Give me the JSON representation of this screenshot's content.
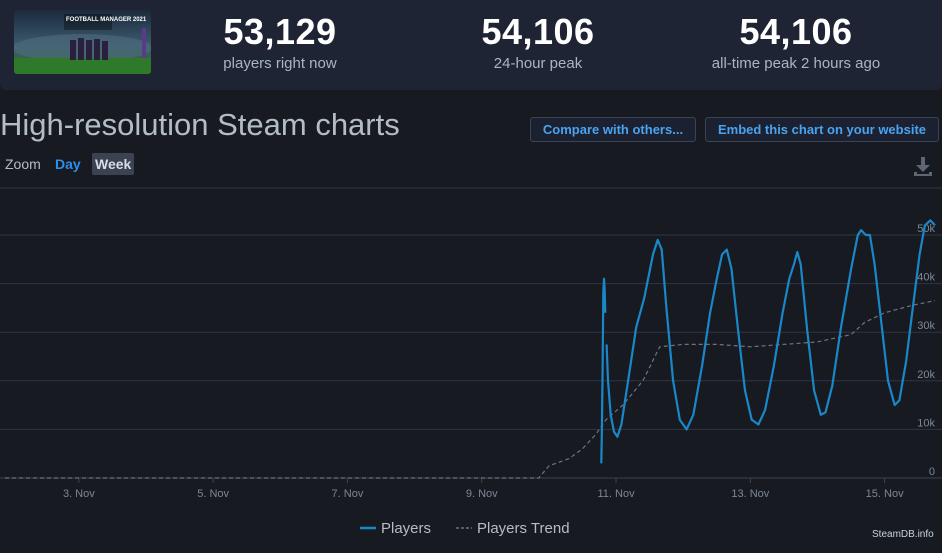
{
  "header": {
    "stats": [
      {
        "value": "53,129",
        "label": "players right now"
      },
      {
        "value": "54,106",
        "label": "24-hour peak"
      },
      {
        "value": "54,106",
        "label": "all-time peak 2 hours ago"
      }
    ],
    "game_image_text": "FOOTBALL MANAGER 2021"
  },
  "title": "High-resolution Steam charts",
  "buttons": {
    "compare": "Compare with others...",
    "embed": "Embed this chart on your website"
  },
  "zoom": {
    "label": "Zoom",
    "options": [
      "Day",
      "Week"
    ],
    "selected": "Week"
  },
  "watermark": "SteamDB.info",
  "colors": {
    "players": "#1a87c8",
    "trend": "#6d7380",
    "accent": "#4aa3f0",
    "background": "#171a21"
  },
  "chart_data": {
    "type": "line",
    "x_unit": "days (November)",
    "xlim": [
      1.9,
      15.75
    ],
    "ylim": [
      0,
      60000
    ],
    "x_ticks": [
      {
        "x": 3,
        "label": "3. Nov"
      },
      {
        "x": 5,
        "label": "5. Nov"
      },
      {
        "x": 7,
        "label": "7. Nov"
      },
      {
        "x": 9,
        "label": "9. Nov"
      },
      {
        "x": 11,
        "label": "11. Nov"
      },
      {
        "x": 13,
        "label": "13. Nov"
      },
      {
        "x": 15,
        "label": "15. Nov"
      }
    ],
    "y_ticks": [
      {
        "y": 0,
        "label": "0"
      },
      {
        "y": 10000,
        "label": "10k"
      },
      {
        "y": 20000,
        "label": "20k"
      },
      {
        "y": 30000,
        "label": "30k"
      },
      {
        "y": 40000,
        "label": "40k"
      },
      {
        "y": 50000,
        "label": "50k"
      }
    ],
    "legend": {
      "position": "bottom-center"
    },
    "series": [
      {
        "name": "Players",
        "style": "solid",
        "segments": [
          [
            [
              10.78,
              3000
            ],
            [
              10.79,
              10000
            ],
            [
              10.8,
              22000
            ],
            [
              10.81,
              38000
            ],
            [
              10.82,
              41000
            ],
            [
              10.83,
              39000
            ],
            [
              10.84,
              34000
            ]
          ],
          [
            [
              10.86,
              27500
            ],
            [
              10.88,
              20000
            ],
            [
              10.92,
              13000
            ],
            [
              10.97,
              9500
            ],
            [
              11.02,
              8500
            ],
            [
              11.08,
              11000
            ],
            [
              11.18,
              20000
            ],
            [
              11.3,
              31000
            ],
            [
              11.42,
              37000
            ],
            [
              11.55,
              46000
            ],
            [
              11.62,
              49000
            ],
            [
              11.68,
              47000
            ],
            [
              11.75,
              35000
            ],
            [
              11.85,
              20000
            ],
            [
              11.95,
              12000
            ],
            [
              12.05,
              10000
            ],
            [
              12.15,
              13000
            ],
            [
              12.28,
              23000
            ],
            [
              12.4,
              34000
            ],
            [
              12.5,
              41000
            ],
            [
              12.58,
              46000
            ],
            [
              12.65,
              47000
            ],
            [
              12.72,
              43000
            ],
            [
              12.82,
              30000
            ],
            [
              12.92,
              18000
            ],
            [
              13.02,
              12000
            ],
            [
              13.12,
              11000
            ],
            [
              13.22,
              14000
            ],
            [
              13.35,
              23000
            ],
            [
              13.48,
              34000
            ],
            [
              13.58,
              41000
            ],
            [
              13.65,
              44000
            ],
            [
              13.7,
              46500
            ],
            [
              13.75,
              44000
            ],
            [
              13.85,
              30000
            ],
            [
              13.95,
              18000
            ],
            [
              14.05,
              13000
            ],
            [
              14.12,
              13500
            ],
            [
              14.22,
              19000
            ],
            [
              14.35,
              31000
            ],
            [
              14.5,
              43000
            ],
            [
              14.6,
              50000
            ],
            [
              14.65,
              51000
            ],
            [
              14.72,
              50000
            ],
            [
              14.78,
              50000
            ],
            [
              14.85,
              44000
            ],
            [
              14.95,
              32000
            ],
            [
              15.05,
              20000
            ],
            [
              15.15,
              15000
            ],
            [
              15.22,
              16000
            ],
            [
              15.32,
              24000
            ],
            [
              15.42,
              35000
            ],
            [
              15.52,
              46000
            ],
            [
              15.6,
              52000
            ],
            [
              15.68,
              53000
            ],
            [
              15.75,
              52000
            ]
          ]
        ]
      },
      {
        "name": "Players Trend",
        "style": "dashed",
        "points": [
          [
            1.9,
            0
          ],
          [
            9.85,
            0
          ],
          [
            10.0,
            2500
          ],
          [
            10.3,
            4000
          ],
          [
            10.5,
            6000
          ],
          [
            10.7,
            9000
          ],
          [
            10.85,
            12000
          ],
          [
            11.1,
            15000
          ],
          [
            11.4,
            20000
          ],
          [
            11.65,
            27000
          ],
          [
            12.0,
            27500
          ],
          [
            12.5,
            27500
          ],
          [
            13.0,
            27000
          ],
          [
            13.5,
            27500
          ],
          [
            14.0,
            28000
          ],
          [
            14.5,
            29500
          ],
          [
            14.7,
            32000
          ],
          [
            15.0,
            34000
          ],
          [
            15.4,
            35500
          ],
          [
            15.75,
            36500
          ]
        ]
      }
    ]
  }
}
